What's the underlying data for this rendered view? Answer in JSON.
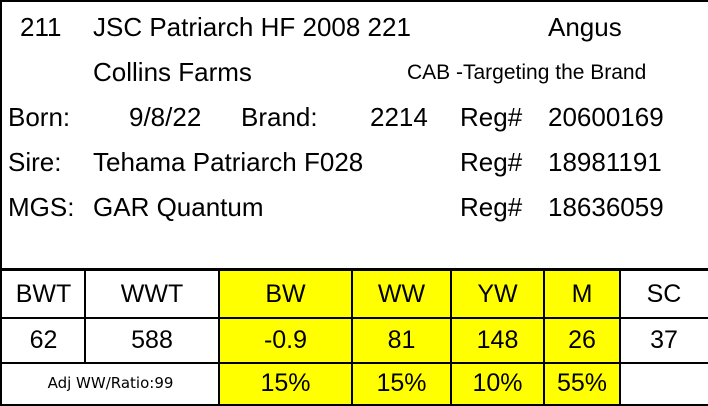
{
  "animal": {
    "number": "211",
    "name": "JSC Patriarch HF 2008 221",
    "breed": "Angus",
    "owner": "Collins Farms",
    "program": "CAB -Targeting the Brand"
  },
  "details": {
    "born_label": "Born:",
    "born_value": "9/8/22",
    "brand_label": "Brand:",
    "brand_value": "2214",
    "sire_label": "Sire:",
    "sire_value": "Tehama Patriarch F028",
    "mgs_label": "MGS:",
    "mgs_value": "GAR Quantum",
    "reg_label": "Reg#",
    "reg_animal": "20600169",
    "reg_sire": "18981191",
    "reg_mgs": "18636059"
  },
  "table": {
    "headers": [
      "BWT",
      "WWT",
      "BW",
      "WW",
      "YW",
      "M",
      "SC"
    ],
    "values": [
      "62",
      "588",
      "-0.9",
      "81",
      "148",
      "26",
      "37"
    ],
    "note": "Adj WW/Ratio:99",
    "percentiles": [
      "15%",
      "15%",
      "10%",
      "55%"
    ]
  },
  "colors": {
    "highlight": "#ffff00",
    "text": "#000000",
    "border": "#000000"
  }
}
